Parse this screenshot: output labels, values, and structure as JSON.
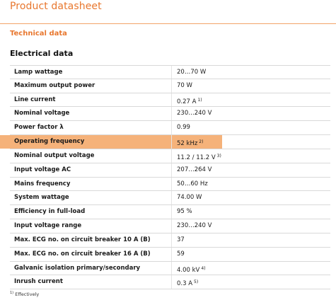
{
  "header": {
    "title": "Product datasheet",
    "subsection": "Technical data"
  },
  "section": {
    "heading": "Electrical data"
  },
  "rows": [
    {
      "label": "Lamp wattage",
      "value": "20…70 W",
      "note": ""
    },
    {
      "label": "Maximum output power",
      "value": "70 W",
      "note": ""
    },
    {
      "label": "Line current",
      "value": "0.27 A",
      "note": "1)"
    },
    {
      "label": "Nominal voltage",
      "value": "230…240 V",
      "note": ""
    },
    {
      "label": "Power factor λ",
      "value": "0.99",
      "note": ""
    },
    {
      "label": "Operating frequency",
      "value": "52 kHz",
      "note": "2)"
    },
    {
      "label": "Nominal output voltage",
      "value": "11.2 / 11.2 V",
      "note": "3)"
    },
    {
      "label": "Input voltage AC",
      "value": "207…264 V",
      "note": ""
    },
    {
      "label": "Mains frequency",
      "value": "50…60 Hz",
      "note": ""
    },
    {
      "label": "System wattage",
      "value": "74.00 W",
      "note": ""
    },
    {
      "label": "Efficiency in full-load",
      "value": "95 %",
      "note": ""
    },
    {
      "label": "Input voltage range",
      "value": "230…240 V",
      "note": ""
    },
    {
      "label": "Max. ECG no. on circuit breaker 10 A (B)",
      "value": "37",
      "note": ""
    },
    {
      "label": "Max. ECG no. on circuit breaker 16 A (B)",
      "value": "59",
      "note": ""
    },
    {
      "label": "Galvanic isolation primary/secondary",
      "value": "4.00 kV",
      "note": "4)"
    },
    {
      "label": "Inrush current",
      "value": "0.3 A",
      "note": "5)"
    }
  ],
  "footnote": {
    "marker": "1)",
    "text": "Effectively"
  },
  "colors": {
    "accent": "#e8772e",
    "highlight": "#f5b27a"
  }
}
